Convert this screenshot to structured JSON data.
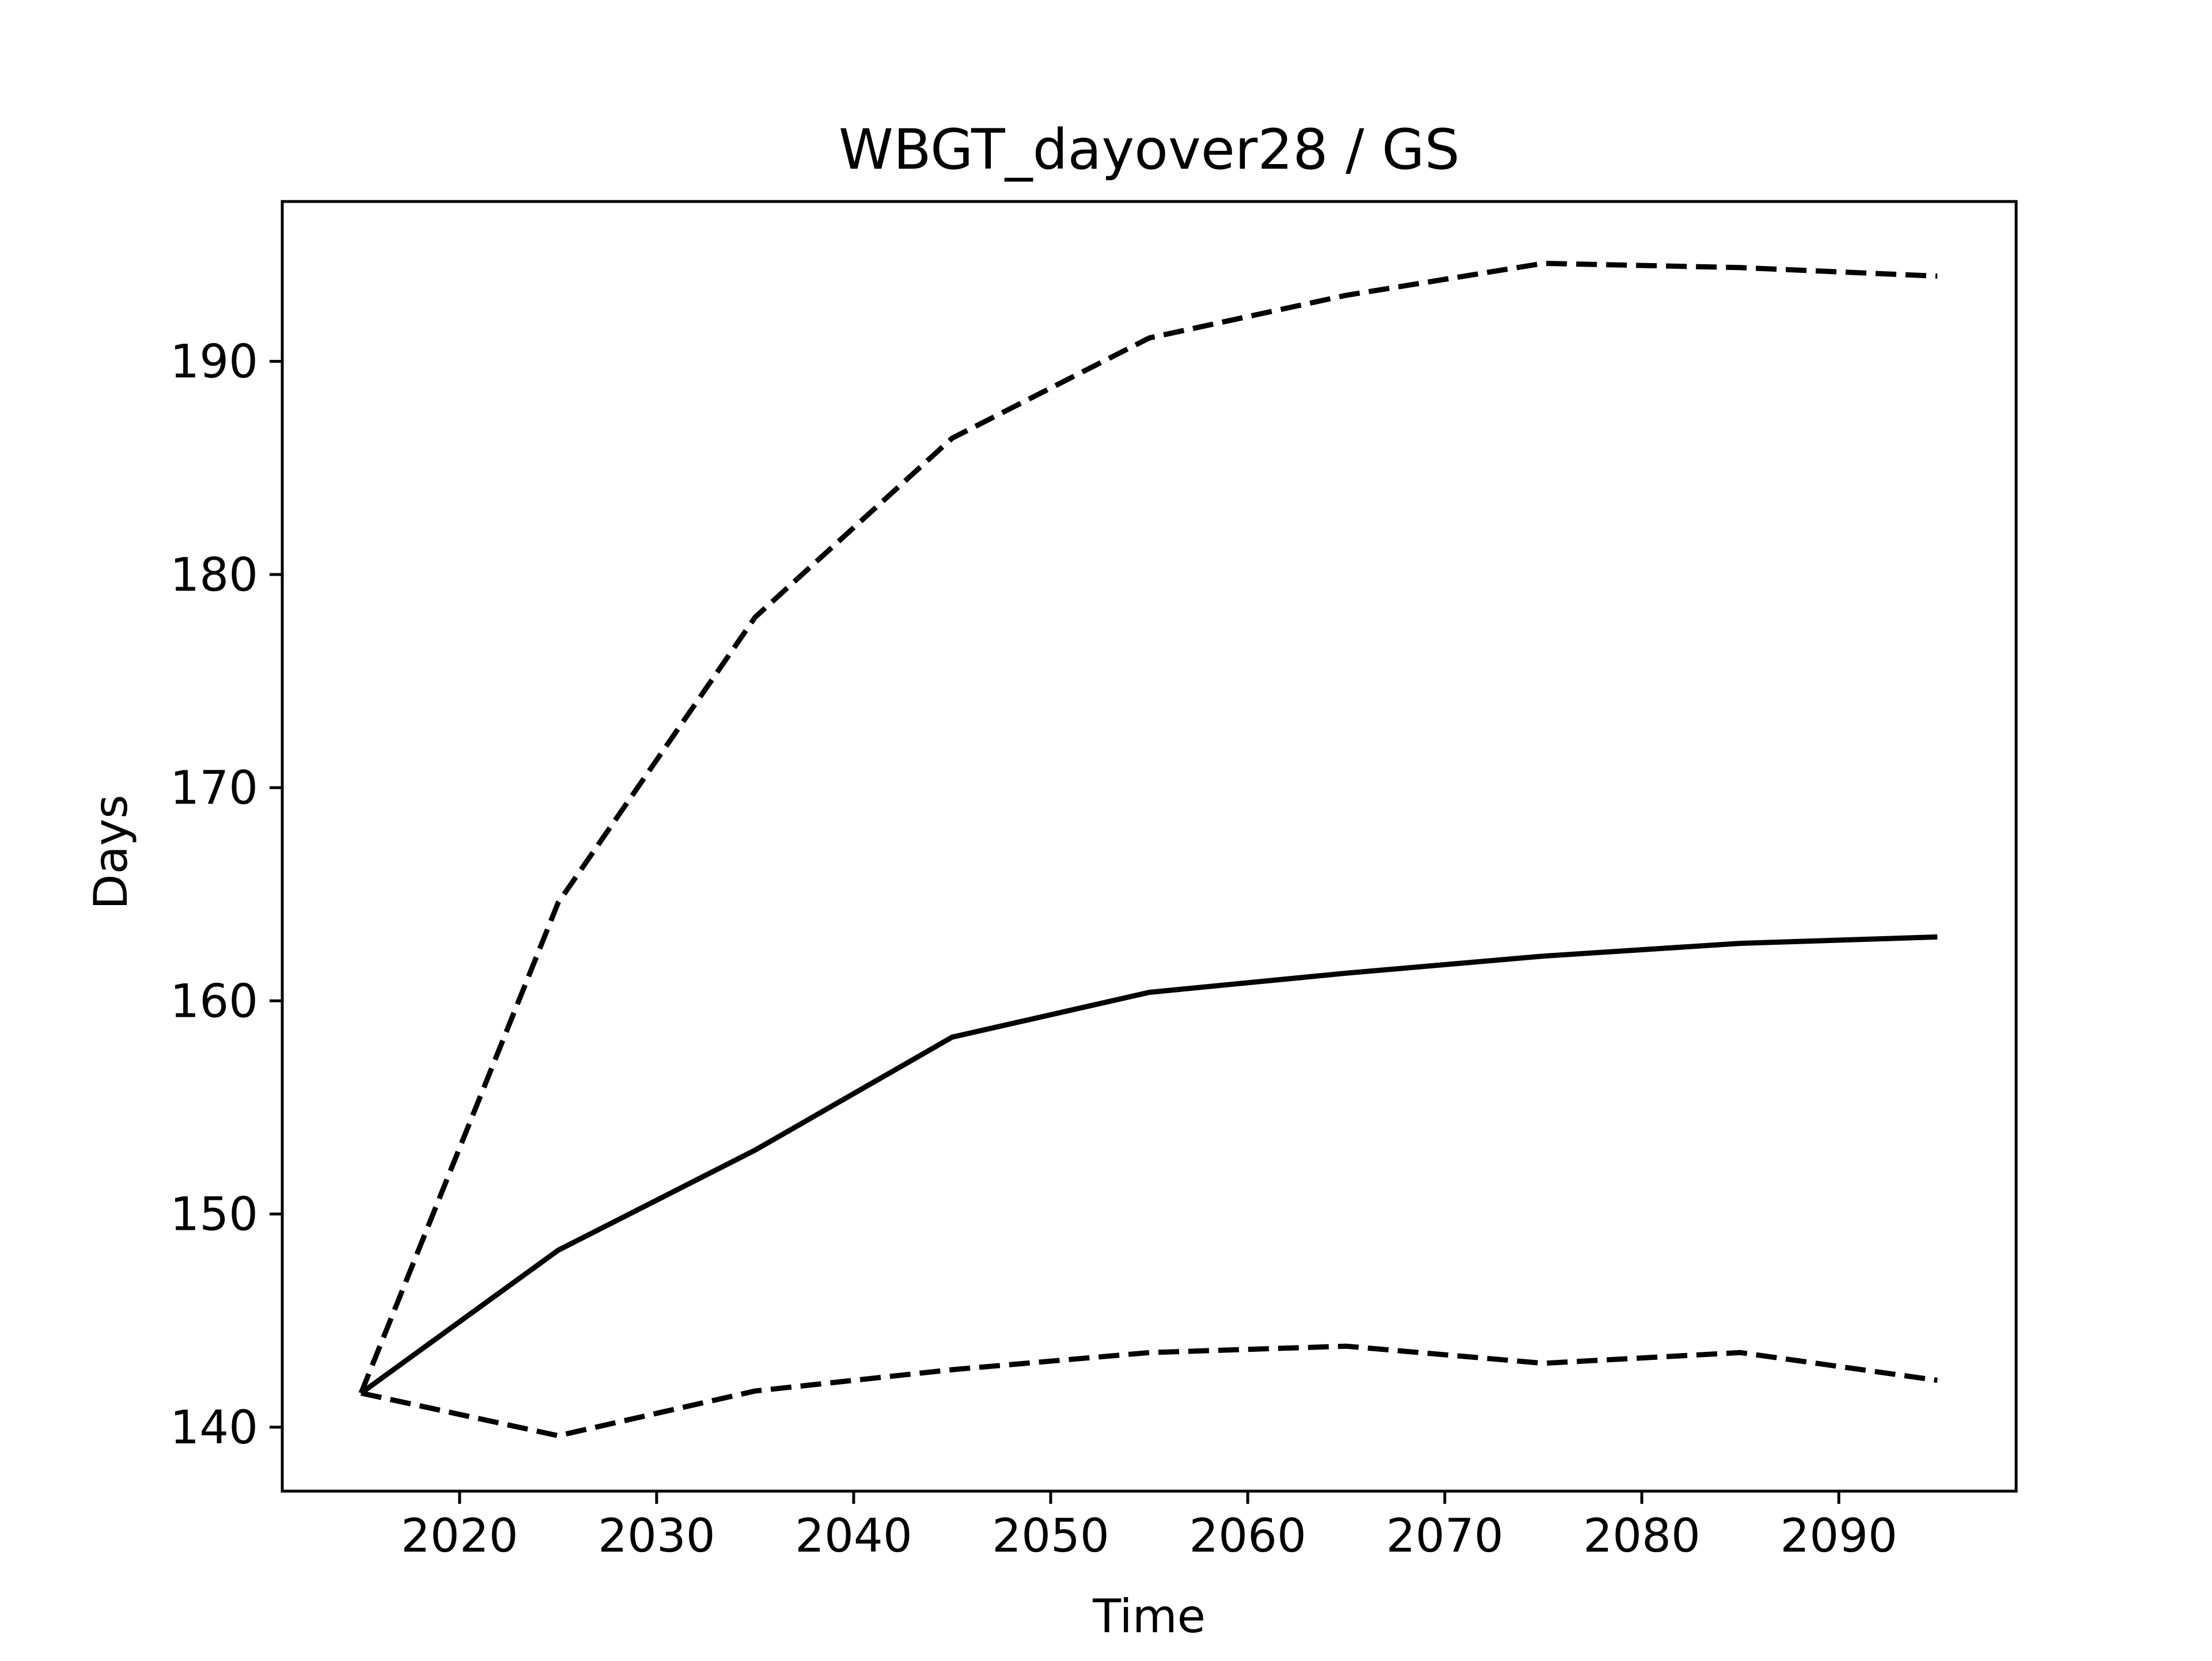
{
  "chart_data": {
    "type": "line",
    "title": "WBGT_dayover28 / GS",
    "xlabel": "Time",
    "ylabel": "Days",
    "xlim": [
      2011,
      2099
    ],
    "ylim": [
      137,
      197.5
    ],
    "xticks": [
      2020,
      2030,
      2040,
      2050,
      2060,
      2070,
      2080,
      2090
    ],
    "yticks": [
      140,
      150,
      160,
      170,
      180,
      190
    ],
    "grid": false,
    "legend": "none",
    "x": [
      2015,
      2025,
      2035,
      2045,
      2055,
      2065,
      2075,
      2085,
      2095
    ],
    "series": [
      {
        "style": "solid",
        "color": "#000000",
        "values": [
          141.6,
          148.3,
          153.0,
          158.3,
          160.4,
          161.3,
          162.1,
          162.7,
          163.0
        ]
      },
      {
        "style": "dashed",
        "color": "#000000",
        "values": [
          141.6,
          164.6,
          178.0,
          186.4,
          191.1,
          193.1,
          194.6,
          194.4,
          194.0
        ]
      },
      {
        "style": "dashed",
        "color": "#000000",
        "values": [
          141.6,
          139.6,
          141.7,
          142.7,
          143.5,
          143.8,
          143.0,
          143.5,
          142.2
        ]
      }
    ]
  }
}
